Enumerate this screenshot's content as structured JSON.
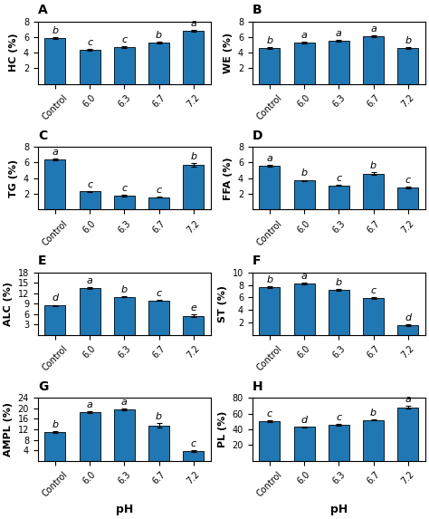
{
  "chart_data": [
    {
      "type": "bar",
      "title": "A",
      "ylabel": "HC (%)",
      "categories": [
        "Control",
        "6.0",
        "6.3",
        "6.7",
        "7.2"
      ],
      "values": [
        5.9,
        4.4,
        4.7,
        5.3,
        6.8
      ],
      "errors": [
        0.12,
        0.12,
        0.12,
        0.12,
        0.12
      ],
      "annotations": [
        "b",
        "c",
        "c",
        "b",
        "a"
      ],
      "ylim": [
        0,
        8
      ],
      "yticks": [
        2,
        4,
        6,
        8
      ]
    },
    {
      "type": "bar",
      "title": "B",
      "ylabel": "WE (%)",
      "categories": [
        "Control",
        "6.0",
        "6.3",
        "6.7",
        "7.2"
      ],
      "values": [
        4.6,
        5.3,
        5.5,
        6.1,
        4.6
      ],
      "errors": [
        0.1,
        0.1,
        0.1,
        0.1,
        0.1
      ],
      "annotations": [
        "b",
        "a",
        "a",
        "a",
        "b"
      ],
      "ylim": [
        0,
        8
      ],
      "yticks": [
        2,
        4,
        6,
        8
      ]
    },
    {
      "type": "bar",
      "title": "C",
      "ylabel": "TG (%)",
      "categories": [
        "Control",
        "6.0",
        "6.3",
        "6.7",
        "7.2"
      ],
      "values": [
        6.4,
        2.3,
        1.8,
        1.6,
        5.7
      ],
      "errors": [
        0.1,
        0.1,
        0.1,
        0.1,
        0.25
      ],
      "annotations": [
        "a",
        "c",
        "c",
        "c",
        "b"
      ],
      "ylim": [
        0,
        8
      ],
      "yticks": [
        2,
        4,
        6,
        8
      ]
    },
    {
      "type": "bar",
      "title": "D",
      "ylabel": "FFA (%)",
      "categories": [
        "Control",
        "6.0",
        "6.3",
        "6.7",
        "7.2"
      ],
      "values": [
        5.6,
        3.7,
        3.1,
        4.6,
        2.8
      ],
      "errors": [
        0.1,
        0.1,
        0.1,
        0.2,
        0.1
      ],
      "annotations": [
        "a",
        "b",
        "c",
        "b",
        "c"
      ],
      "ylim": [
        0,
        8
      ],
      "yticks": [
        2,
        4,
        6,
        8
      ]
    },
    {
      "type": "bar",
      "title": "E",
      "ylabel": "ALC (%)",
      "categories": [
        "Control",
        "6.0",
        "6.3",
        "6.7",
        "7.2"
      ],
      "values": [
        8.5,
        13.5,
        11.0,
        10.0,
        5.5
      ],
      "errors": [
        0.2,
        0.2,
        0.2,
        0.2,
        0.4
      ],
      "annotations": [
        "d",
        "a",
        "b",
        "c",
        "e"
      ],
      "ylim": [
        0,
        18
      ],
      "yticks": [
        3,
        6,
        9,
        12,
        15,
        18
      ]
    },
    {
      "type": "bar",
      "title": "F",
      "ylabel": "ST (%)",
      "categories": [
        "Control",
        "6.0",
        "6.3",
        "6.7",
        "7.2"
      ],
      "values": [
        7.6,
        8.2,
        7.2,
        5.9,
        1.6
      ],
      "errors": [
        0.15,
        0.15,
        0.15,
        0.15,
        0.1
      ],
      "annotations": [
        "b",
        "a",
        "b",
        "c",
        "d"
      ],
      "ylim": [
        0,
        10
      ],
      "yticks": [
        2,
        4,
        6,
        8,
        10
      ]
    },
    {
      "type": "bar",
      "title": "G",
      "ylabel": "AMPL (%)",
      "xlabel": "pH",
      "categories": [
        "Control",
        "6.0",
        "6.3",
        "6.7",
        "7.2"
      ],
      "values": [
        11.0,
        18.5,
        19.5,
        13.5,
        3.8
      ],
      "errors": [
        0.3,
        0.3,
        0.3,
        0.9,
        0.3
      ],
      "annotations": [
        "b",
        "a",
        "a",
        "b",
        "c"
      ],
      "ylim": [
        0,
        24
      ],
      "yticks": [
        4,
        8,
        12,
        16,
        20,
        24
      ]
    },
    {
      "type": "bar",
      "title": "H",
      "ylabel": "PL (%)",
      "xlabel": "pH",
      "categories": [
        "Control",
        "6.0",
        "6.3",
        "6.7",
        "7.2"
      ],
      "values": [
        50.0,
        43.0,
        46.0,
        52.0,
        68.0
      ],
      "errors": [
        1.0,
        0.8,
        1.0,
        1.0,
        1.5
      ],
      "annotations": [
        "c",
        "d",
        "c",
        "b",
        "a"
      ],
      "ylim": [
        0,
        80
      ],
      "yticks": [
        20,
        40,
        60,
        80
      ]
    }
  ]
}
